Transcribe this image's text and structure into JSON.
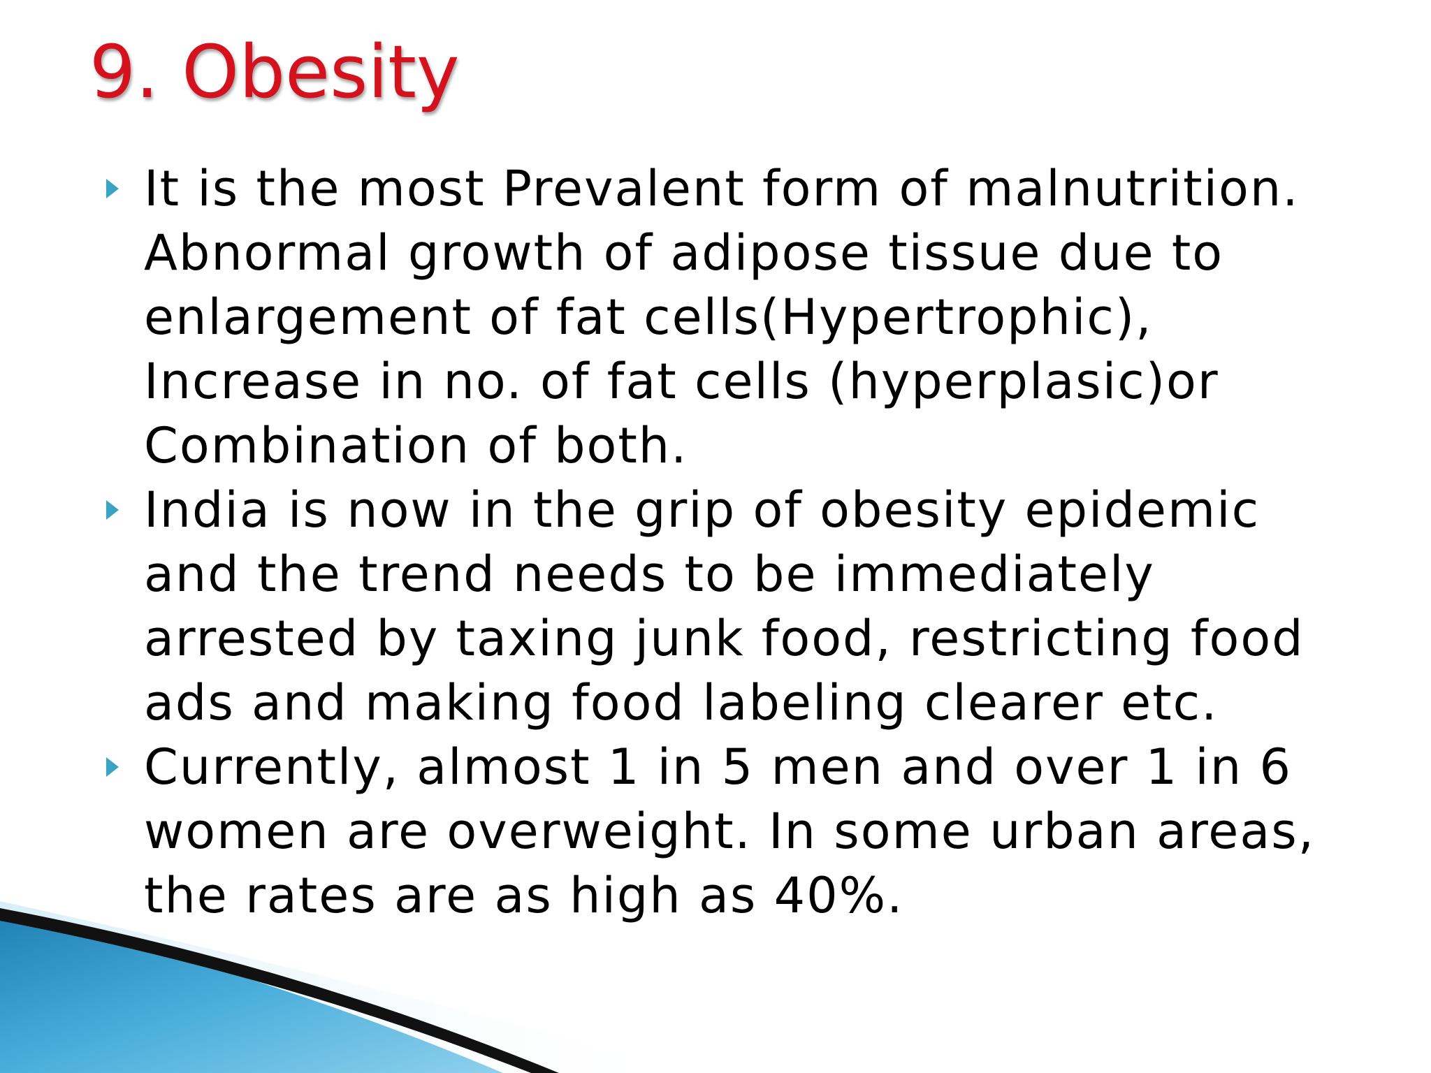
{
  "slide": {
    "title": "9. Obesity",
    "bullets": [
      {
        "text": "It is the most Prevalent form of malnutrition.\nAbnormal growth of adipose tissue due to\nenlargement of fat cells(Hypertrophic),\nIncrease in no. of fat cells (hyperplasic)or\nCombination of both."
      },
      {
        "text": " India is now in the grip of obesity epidemic\nand the trend needs to be immediately\narrested by taxing junk food, restricting food\nads and making food labeling clearer etc."
      },
      {
        "text": "Currently, almost 1 in 5 men and over 1 in 6\nwomen are overweight. In some urban areas,\nthe rates are as high as 40%."
      }
    ]
  },
  "colors": {
    "title": "#d4121d",
    "bullet_marker": "#3aa4c4",
    "body_text": "#000000",
    "swoosh_blue": "#2a8fc0",
    "swoosh_light": "#bfe3f2",
    "swoosh_dark": "#111111"
  },
  "icons": {
    "bullet": "triangle-right-icon"
  }
}
